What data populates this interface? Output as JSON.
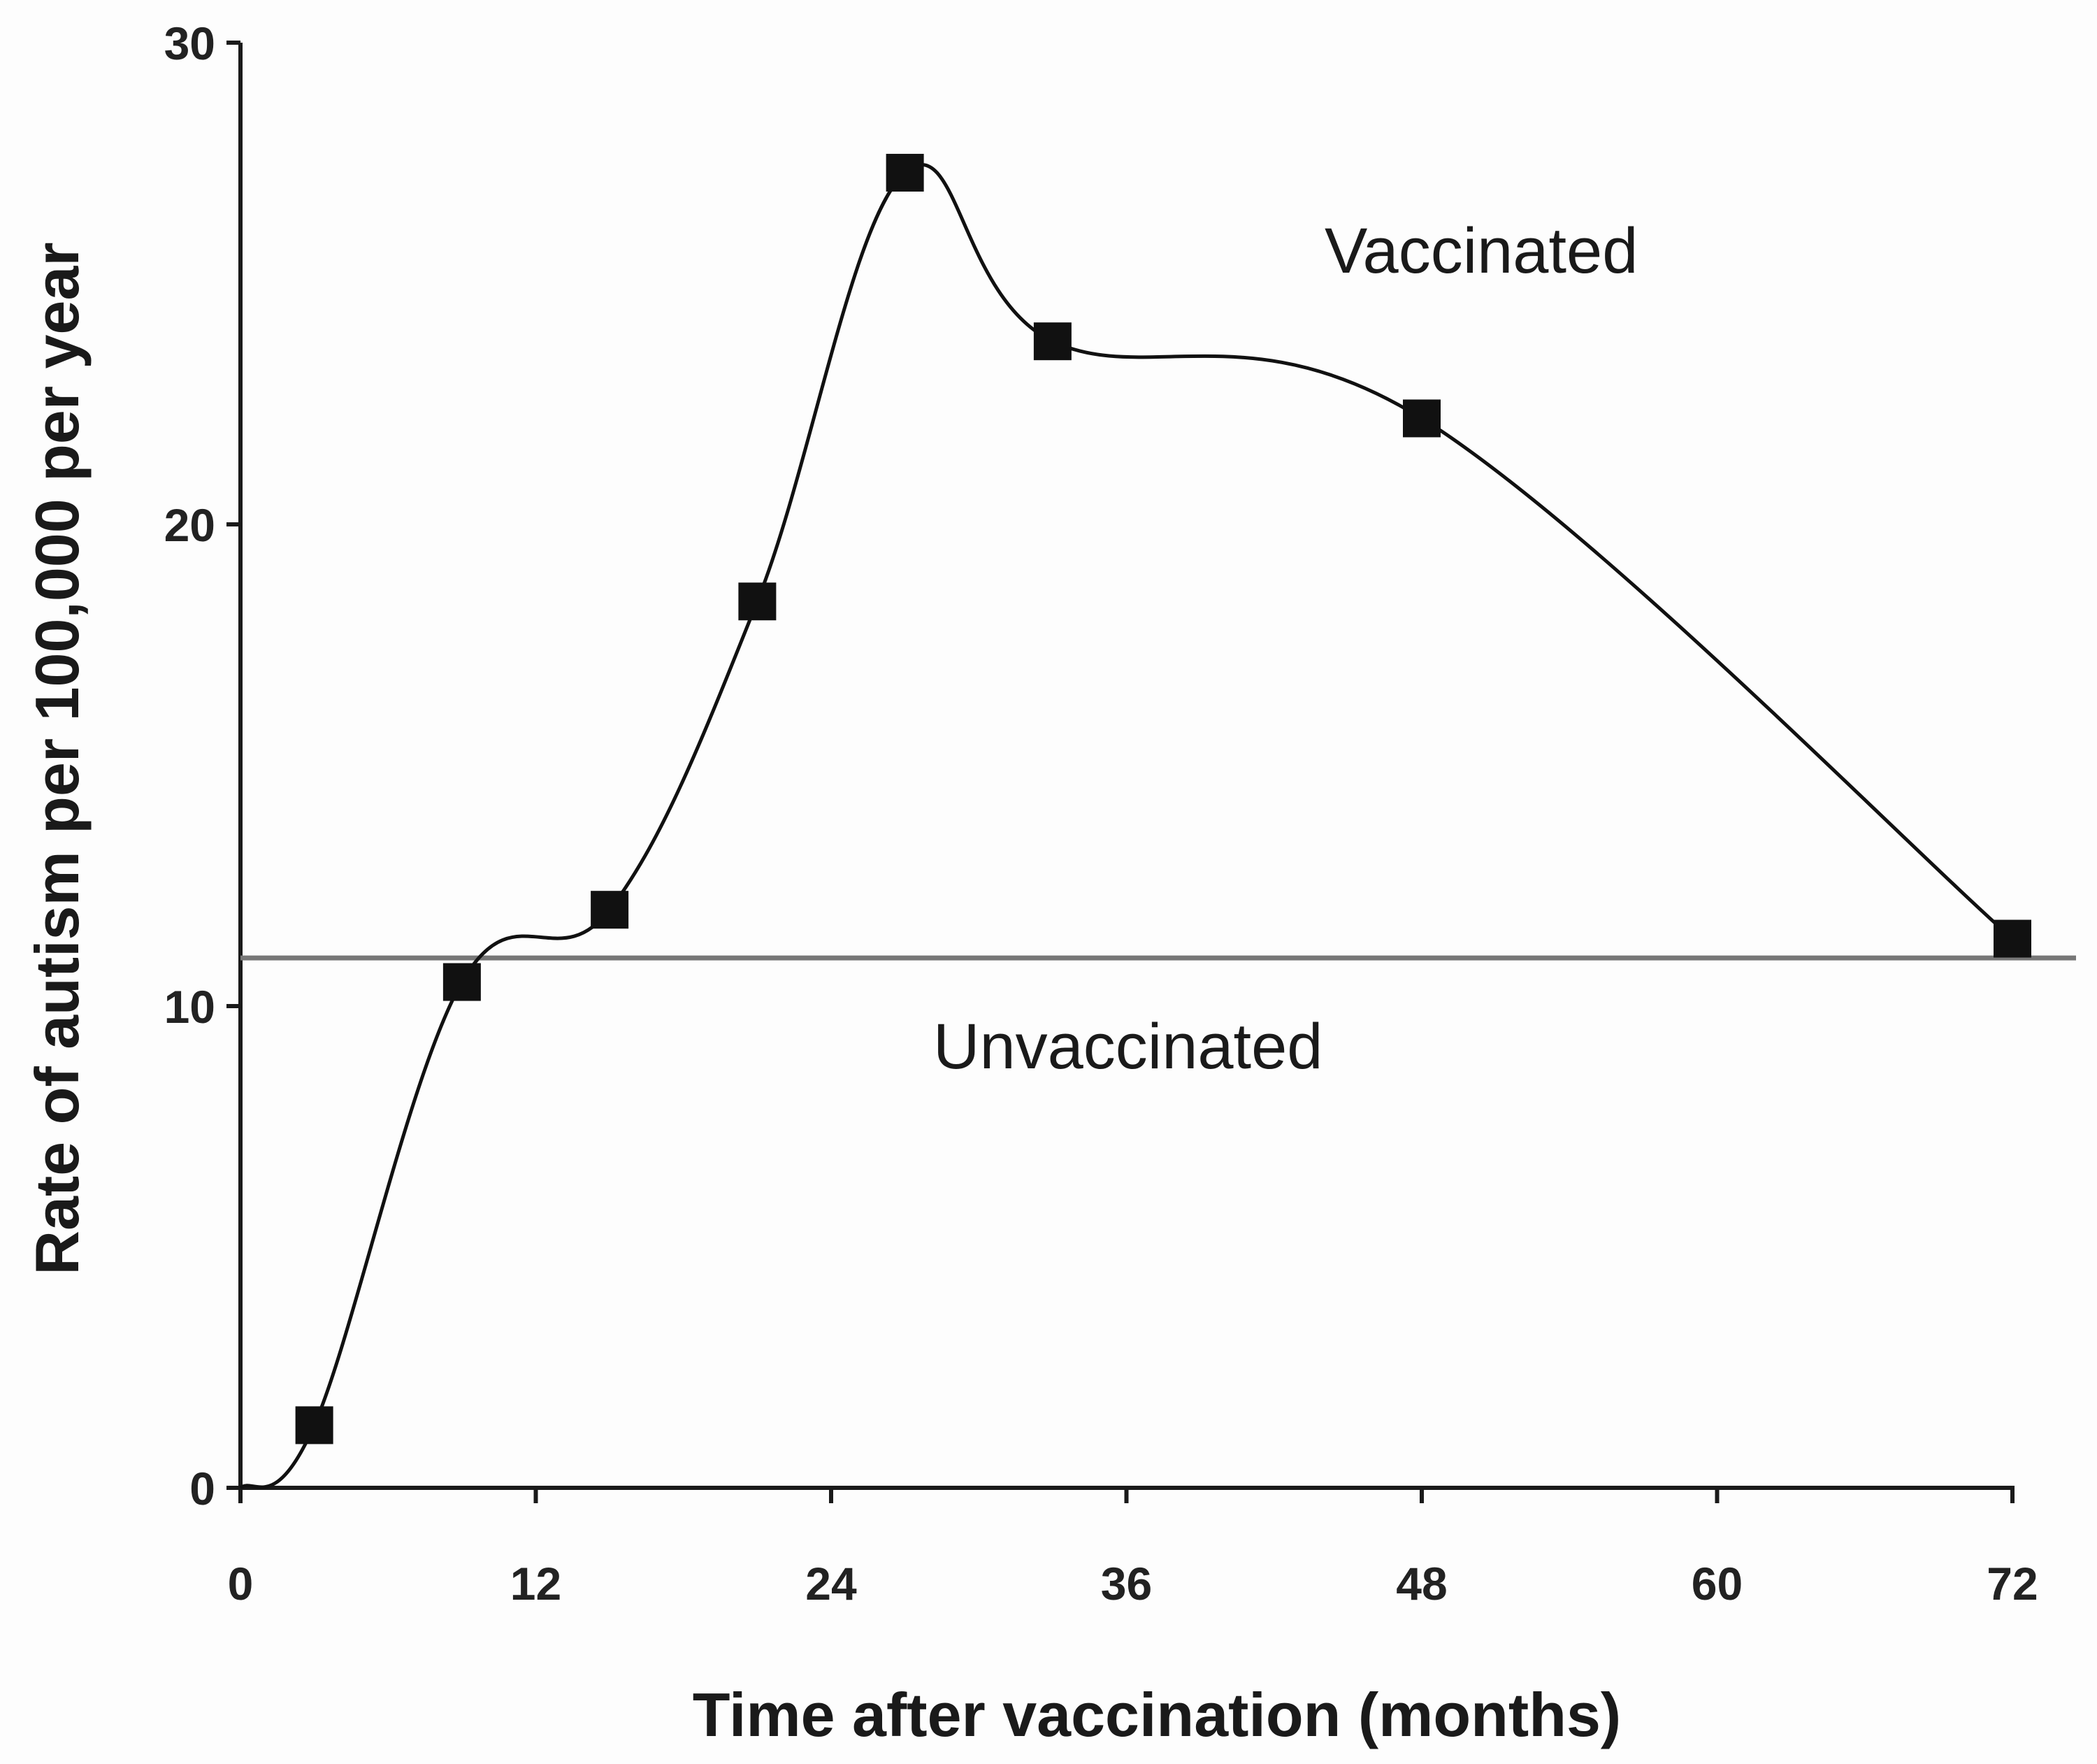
{
  "chart_data": {
    "type": "line",
    "title": "",
    "xlabel": "Time after vaccination (months)",
    "ylabel": "Rate of autism per 100,000 per year",
    "xlim": [
      0,
      72
    ],
    "ylim": [
      0,
      30
    ],
    "x_ticks": [
      0,
      12,
      24,
      36,
      48,
      60,
      72
    ],
    "y_ticks": [
      0,
      10,
      20,
      30
    ],
    "grid": false,
    "legend": null,
    "series": [
      {
        "name": "Vaccinated",
        "style": "smooth line with square markers",
        "color": "#111111",
        "x": [
          0,
          3,
          9,
          15,
          21,
          27,
          33,
          48,
          72
        ],
        "values": [
          0,
          1.3,
          10.5,
          12.0,
          18.4,
          27.3,
          23.8,
          22.2,
          11.4
        ],
        "markers_at": [
          3,
          9,
          15,
          21,
          27,
          33,
          48,
          72
        ]
      },
      {
        "name": "Unvaccinated",
        "style": "horizontal reference line",
        "color": "#777777",
        "value": 11.0
      }
    ],
    "annotations": [
      {
        "text": "Vaccinated",
        "x": 43,
        "y": 25.5
      },
      {
        "text": "Unvaccinated",
        "x": 31.5,
        "y": 9.3
      }
    ]
  },
  "labels": {
    "x_axis_title": "Time after vaccination (months)",
    "y_axis_title": "Rate of autism per 100,000 per year",
    "x_ticks": [
      "0",
      "12",
      "24",
      "36",
      "48",
      "60",
      "72"
    ],
    "y_ticks": [
      "0",
      "10",
      "20",
      "30"
    ],
    "vaccinated": "Vaccinated",
    "unvaccinated": "Unvaccinated"
  }
}
